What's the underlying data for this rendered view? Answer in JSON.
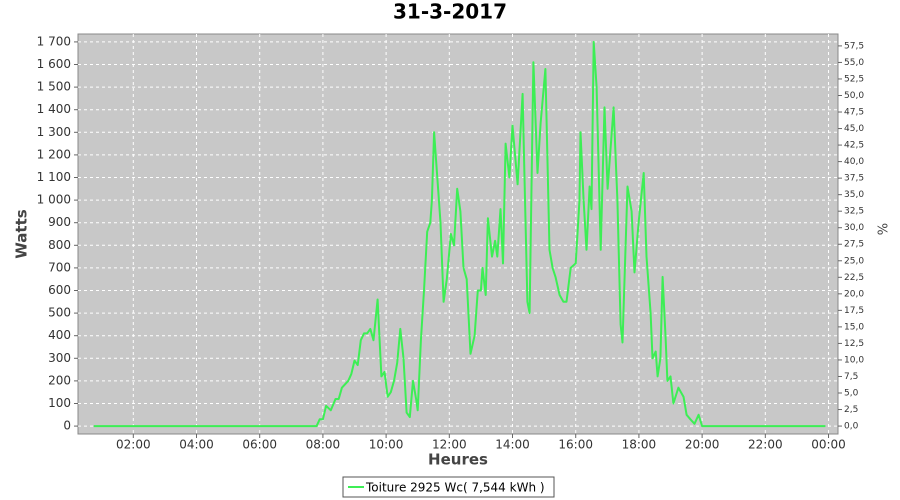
{
  "chart_data": {
    "type": "line",
    "title": "31-3-2017",
    "xlabel": "Heures",
    "ylabel": "Watts",
    "y2label": "%",
    "x": [
      0.75,
      7.5,
      7.8,
      7.9,
      8.0,
      8.1,
      8.25,
      8.4,
      8.5,
      8.6,
      8.8,
      8.9,
      9.0,
      9.1,
      9.2,
      9.3,
      9.4,
      9.5,
      9.6,
      9.73,
      9.85,
      9.95,
      10.05,
      10.15,
      10.25,
      10.35,
      10.45,
      10.55,
      10.65,
      10.75,
      10.85,
      10.95,
      11.0,
      11.1,
      11.2,
      11.3,
      11.4,
      11.45,
      11.52,
      11.62,
      11.72,
      11.82,
      11.92,
      12.05,
      12.15,
      12.25,
      12.35,
      12.45,
      12.55,
      12.67,
      12.8,
      12.9,
      13.0,
      13.05,
      13.15,
      13.22,
      13.35,
      13.45,
      13.52,
      13.62,
      13.7,
      13.78,
      13.9,
      14.0,
      14.16,
      14.32,
      14.38,
      14.47,
      14.54,
      14.66,
      14.79,
      14.89,
      15.04,
      15.17,
      15.27,
      15.36,
      15.49,
      15.61,
      15.71,
      15.84,
      16.0,
      16.12,
      16.15,
      16.25,
      16.34,
      16.44,
      16.5,
      16.57,
      16.66,
      16.79,
      16.91,
      17.01,
      17.2,
      17.32,
      17.42,
      17.48,
      17.64,
      17.77,
      17.86,
      17.99,
      18.15,
      18.24,
      18.37,
      18.43,
      18.53,
      18.59,
      18.68,
      18.75,
      18.84,
      18.9,
      19.0,
      19.09,
      19.25,
      19.41,
      19.51,
      19.63,
      19.76,
      19.89,
      20.0,
      23.9
    ],
    "series": [
      {
        "name": "Toiture 2925 Wc( 7,544 kWh )",
        "color": "#3dee55",
        "values": [
          0,
          0,
          0,
          30,
          30,
          90,
          70,
          120,
          120,
          170,
          200,
          230,
          290,
          270,
          380,
          410,
          410,
          430,
          380,
          560,
          220,
          240,
          130,
          150,
          200,
          280,
          430,
          300,
          60,
          40,
          200,
          120,
          70,
          380,
          600,
          860,
          900,
          1000,
          1300,
          1100,
          900,
          550,
          650,
          850,
          800,
          1050,
          950,
          700,
          650,
          320,
          400,
          600,
          600,
          700,
          580,
          920,
          750,
          820,
          750,
          960,
          720,
          1250,
          1100,
          1330,
          1070,
          1470,
          1100,
          550,
          500,
          1610,
          1120,
          1340,
          1580,
          780,
          700,
          660,
          580,
          550,
          550,
          700,
          720,
          1000,
          1300,
          1000,
          780,
          1060,
          960,
          1700,
          1500,
          780,
          1410,
          1050,
          1410,
          1000,
          450,
          370,
          1060,
          950,
          680,
          900,
          1120,
          750,
          500,
          300,
          330,
          220,
          300,
          660,
          400,
          200,
          220,
          100,
          170,
          130,
          50,
          30,
          10,
          50,
          0,
          0
        ]
      }
    ],
    "xlim": [
      0.25,
      24.3
    ],
    "xticks": [
      {
        "value": 2,
        "label": "02:00"
      },
      {
        "value": 4,
        "label": "04:00"
      },
      {
        "value": 6,
        "label": "06:00"
      },
      {
        "value": 8,
        "label": "08:00"
      },
      {
        "value": 10,
        "label": "10:00"
      },
      {
        "value": 12,
        "label": "12:00"
      },
      {
        "value": 14,
        "label": "14:00"
      },
      {
        "value": 16,
        "label": "16:00"
      },
      {
        "value": 18,
        "label": "18:00"
      },
      {
        "value": 20,
        "label": "20:00"
      },
      {
        "value": 22,
        "label": "22:00"
      },
      {
        "value": 24,
        "label": "00:00"
      }
    ],
    "ylim": [
      -35,
      1735
    ],
    "yticks": [
      0,
      100,
      200,
      300,
      400,
      500,
      600,
      700,
      800,
      900,
      {
        "value": 1000,
        "label": "1 000"
      },
      {
        "value": 1100,
        "label": "1 100"
      },
      {
        "value": 1200,
        "label": "1 200"
      },
      {
        "value": 1300,
        "label": "1 300"
      },
      {
        "value": 1400,
        "label": "1 400"
      },
      {
        "value": 1500,
        "label": "1 500"
      },
      {
        "value": 1600,
        "label": "1 600"
      },
      {
        "value": 1700,
        "label": "1 700"
      }
    ],
    "y2lim": [
      -1.2,
      59.3
    ],
    "y2ticks": [
      {
        "value": 0,
        "label": "0,0"
      },
      {
        "value": 2.5,
        "label": "2,5"
      },
      {
        "value": 5,
        "label": "5,0"
      },
      {
        "value": 7.5,
        "label": "7,5"
      },
      {
        "value": 10,
        "label": "10,0"
      },
      {
        "value": 12.5,
        "label": "12,5"
      },
      {
        "value": 15,
        "label": "15,0"
      },
      {
        "value": 17.5,
        "label": "17,5"
      },
      {
        "value": 20,
        "label": "20,0"
      },
      {
        "value": 22.5,
        "label": "22,5"
      },
      {
        "value": 25,
        "label": "25,0"
      },
      {
        "value": 27.5,
        "label": "27,5"
      },
      {
        "value": 30,
        "label": "30,0"
      },
      {
        "value": 32.5,
        "label": "32,5"
      },
      {
        "value": 35,
        "label": "35,0"
      },
      {
        "value": 37.5,
        "label": "37,5"
      },
      {
        "value": 40,
        "label": "40,0"
      },
      {
        "value": 42.5,
        "label": "42,5"
      },
      {
        "value": 45,
        "label": "45,0"
      },
      {
        "value": 47.5,
        "label": "47,5"
      },
      {
        "value": 50,
        "label": "50,0"
      },
      {
        "value": 52.5,
        "label": "52,5"
      },
      {
        "value": 55,
        "label": "55,0"
      },
      {
        "value": 57.5,
        "label": "57,5"
      }
    ],
    "grid": true,
    "plot_background": "#c8c8c8",
    "legend": "bottom"
  }
}
